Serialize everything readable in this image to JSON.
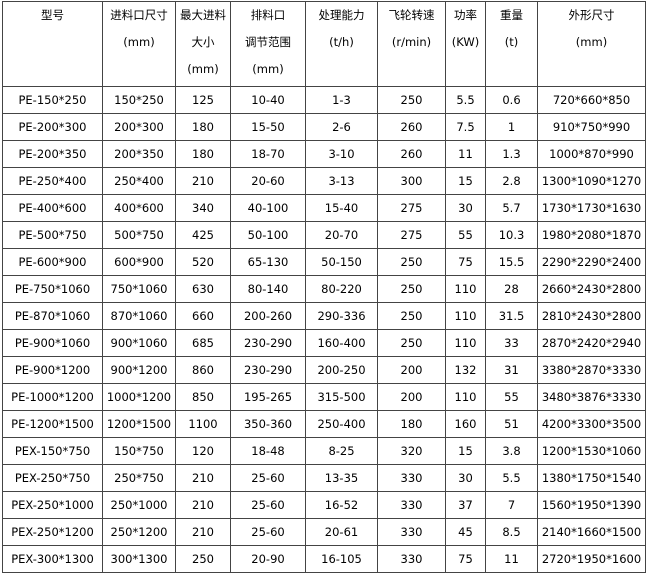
{
  "table": {
    "header": [
      [
        "型号"
      ],
      [
        "进料口尺寸",
        "(mm)"
      ],
      [
        "最大进料",
        "大小",
        "(mm)"
      ],
      [
        "排料口",
        "调节范围",
        "(mm)"
      ],
      [
        "处理能力",
        "(t/h)"
      ],
      [
        "飞轮转速",
        "(r/min)"
      ],
      [
        "功率",
        "(KW)"
      ],
      [
        "重量",
        "(t)"
      ],
      [
        "外形尺寸",
        "(mm)"
      ]
    ],
    "rows": [
      [
        "PE-150*250",
        "150*250",
        "125",
        "10-40",
        "1-3",
        "250",
        "5.5",
        "0.6",
        "720*660*850"
      ],
      [
        "PE-200*300",
        "200*300",
        "180",
        "15-50",
        "2-6",
        "260",
        "7.5",
        "1",
        "910*750*990"
      ],
      [
        "PE-200*350",
        "200*350",
        "180",
        "18-70",
        "3-10",
        "260",
        "11",
        "1.3",
        "1000*870*990"
      ],
      [
        "PE-250*400",
        "250*400",
        "210",
        "20-60",
        "3-13",
        "300",
        "15",
        "2.8",
        "1300*1090*1270"
      ],
      [
        "PE-400*600",
        "400*600",
        "340",
        "40-100",
        "15-40",
        "275",
        "30",
        "5.7",
        "1730*1730*1630"
      ],
      [
        "PE-500*750",
        "500*750",
        "425",
        "50-100",
        "20-70",
        "275",
        "55",
        "10.3",
        "1980*2080*1870"
      ],
      [
        "PE-600*900",
        "600*900",
        "520",
        "65-130",
        "50-150",
        "250",
        "75",
        "15.5",
        "2290*2290*2400"
      ],
      [
        "PE-750*1060",
        "750*1060",
        "630",
        "80-140",
        "80-220",
        "250",
        "110",
        "28",
        "2660*2430*2800"
      ],
      [
        "PE-870*1060",
        "870*1060",
        "660",
        "200-260",
        "290-336",
        "250",
        "110",
        "31.5",
        "2810*2430*2800"
      ],
      [
        "PE-900*1060",
        "900*1060",
        "685",
        "230-290",
        "160-400",
        "250",
        "110",
        "33",
        "2870*2420*2940"
      ],
      [
        "PE-900*1200",
        "900*1200",
        "860",
        "230-290",
        "200-250",
        "200",
        "132",
        "31",
        "3380*2870*3330"
      ],
      [
        "PE-1000*1200",
        "1000*1200",
        "850",
        "195-265",
        "315-500",
        "200",
        "110",
        "55",
        "3480*3876*3330"
      ],
      [
        "PE-1200*1500",
        "1200*1500",
        "1100",
        "350-360",
        "250-400",
        "180",
        "160",
        "51",
        "4200*3300*3500"
      ],
      [
        "PEX-150*750",
        "150*750",
        "120",
        "18-48",
        "8-25",
        "320",
        "15",
        "3.8",
        "1200*1530*1060"
      ],
      [
        "PEX-250*750",
        "250*750",
        "210",
        "25-60",
        "13-35",
        "330",
        "30",
        "5.5",
        "1380*1750*1540"
      ],
      [
        "PEX-250*1000",
        "250*1000",
        "210",
        "25-60",
        "16-52",
        "330",
        "37",
        "7",
        "1560*1950*1390"
      ],
      [
        "PEX-250*1200",
        "250*1200",
        "210",
        "25-60",
        "20-61",
        "330",
        "45",
        "8.5",
        "2140*1660*1500"
      ],
      [
        "PEX-300*1300",
        "300*1300",
        "250",
        "20-90",
        "16-105",
        "330",
        "75",
        "11",
        "2720*1950*1600"
      ]
    ]
  }
}
